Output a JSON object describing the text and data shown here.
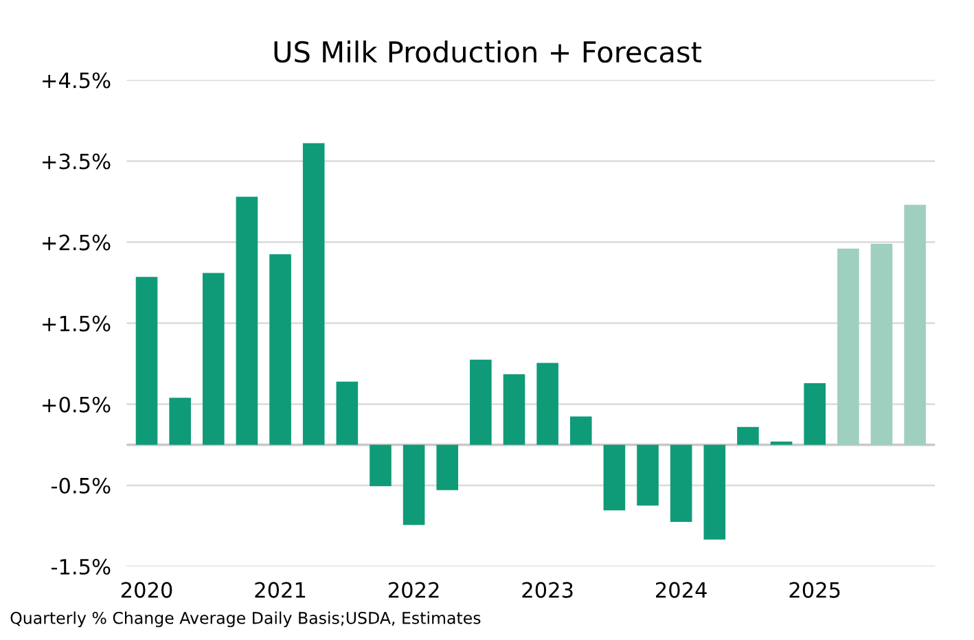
{
  "chart_data": {
    "type": "bar",
    "title": "US Milk Production + Forecast",
    "categories": [
      "2020",
      null,
      null,
      null,
      "2021",
      null,
      null,
      null,
      "2022",
      null,
      null,
      null,
      "2023",
      null,
      null,
      null,
      "2024",
      null,
      null,
      null,
      "2025",
      null,
      null,
      null
    ],
    "values": [
      2.07,
      0.58,
      2.12,
      3.06,
      2.35,
      3.72,
      0.78,
      -0.51,
      -0.99,
      -0.56,
      1.05,
      0.87,
      1.01,
      0.35,
      -0.81,
      -0.75,
      -0.95,
      -1.17,
      0.22,
      0.04,
      0.76,
      2.42,
      2.48,
      2.96
    ],
    "colors": [
      "#0f9b78",
      "#0f9b78",
      "#0f9b78",
      "#0f9b78",
      "#0f9b78",
      "#0f9b78",
      "#0f9b78",
      "#0f9b78",
      "#0f9b78",
      "#0f9b78",
      "#0f9b78",
      "#0f9b78",
      "#0f9b78",
      "#0f9b78",
      "#0f9b78",
      "#0f9b78",
      "#0f9b78",
      "#0f9b78",
      "#0f9b78",
      "#0f9b78",
      "#0f9b78",
      "#9fcfbf",
      "#9fcfbf",
      "#9fcfbf"
    ],
    "ylim": [
      -1.5,
      4.5
    ],
    "yticks": [
      {
        "value": -1.5,
        "label": "-1.5%"
      },
      {
        "value": -0.5,
        "label": "-0.5%"
      },
      {
        "value": 0.5,
        "label": "+0.5%"
      },
      {
        "value": 1.5,
        "label": "+1.5%"
      },
      {
        "value": 2.5,
        "label": "+2.5%"
      },
      {
        "value": 3.5,
        "label": "+3.5%"
      },
      {
        "value": 4.5,
        "label": "+4.5%"
      }
    ],
    "grid": "y",
    "ref_lines": [
      {
        "axis": "y",
        "value": 0,
        "color": "#c8c8c8"
      }
    ],
    "annotations": [
      "Quarterly % Change Average Daily Basis;USDA, Estimates"
    ]
  }
}
